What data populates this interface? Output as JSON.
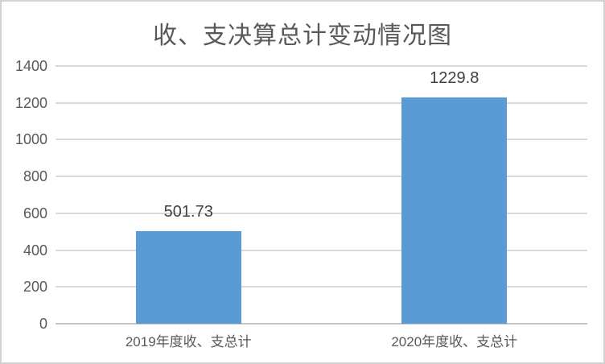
{
  "chart_data": {
    "type": "bar",
    "title": "收、支决算总计变动情况图",
    "categories": [
      "2019年度收、支总计",
      "2020年度收、支总计"
    ],
    "values": [
      501.73,
      1229.8
    ],
    "value_labels": [
      "501.73",
      "1229.8"
    ],
    "ylim": [
      0,
      1400
    ],
    "ytick_step": 200,
    "ytick_labels": [
      "0",
      "200",
      "400",
      "600",
      "800",
      "1000",
      "1200",
      "1400"
    ],
    "grid": true,
    "legend": "none",
    "xlabel": "",
    "ylabel": ""
  },
  "colors": {
    "bar": "#5b9bd5",
    "gridline": "#d9d9d9",
    "axis_line": "#c6c6c6",
    "tick_label": "#595959",
    "data_label": "#404040",
    "title": "#595959",
    "background": "#ffffff",
    "border": "#d2d2d2"
  }
}
